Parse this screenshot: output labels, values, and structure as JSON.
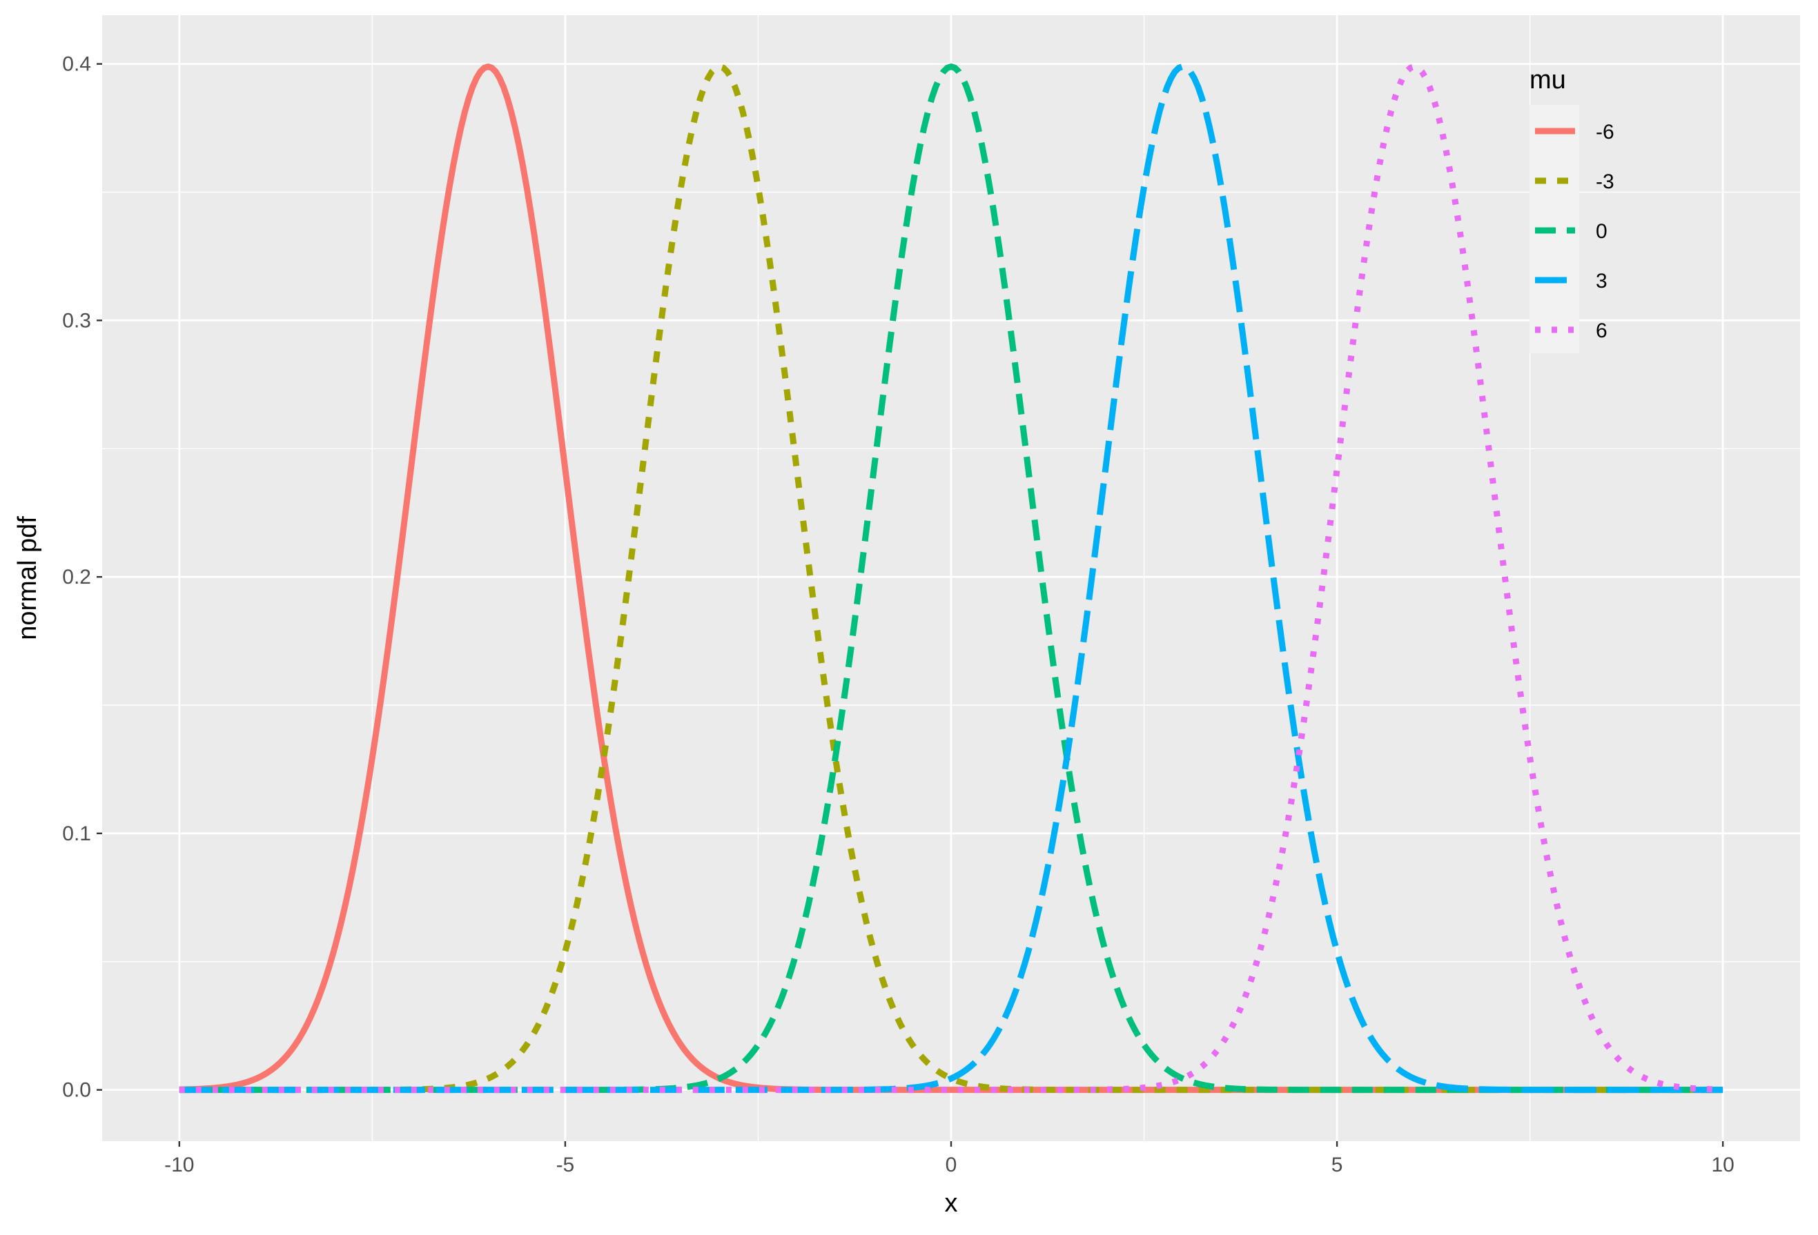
{
  "chart_data": {
    "type": "line",
    "xlabel": "x",
    "ylabel": "normal pdf",
    "xlim": [
      -11,
      11
    ],
    "ylim": [
      -0.02,
      0.419
    ],
    "x_ticks": [
      -10,
      -5,
      0,
      5,
      10
    ],
    "x_tick_labels": [
      "-10",
      "-5",
      "0",
      "5",
      "10"
    ],
    "x_minor_ticks": [
      -7.5,
      -2.5,
      2.5,
      7.5
    ],
    "y_ticks": [
      0.0,
      0.1,
      0.2,
      0.3,
      0.4
    ],
    "y_tick_labels": [
      "0.0",
      "0.1",
      "0.2",
      "0.3",
      "0.4"
    ],
    "y_minor_ticks": [
      0.05,
      0.15,
      0.25,
      0.35
    ],
    "grid": true,
    "background": "#ebebeb",
    "legend": {
      "title": "mu",
      "position": "top-right-inside"
    },
    "x_range": [
      -10,
      10
    ],
    "sd": 1,
    "series": [
      {
        "name": "-6",
        "mu": -6,
        "color": "#F8766D",
        "linetype": "solid"
      },
      {
        "name": "-3",
        "mu": -3,
        "color": "#A3A500",
        "linetype": "dashed-short"
      },
      {
        "name": "0",
        "mu": 0,
        "color": "#00BF7D",
        "linetype": "dashed"
      },
      {
        "name": "3",
        "mu": 3,
        "color": "#00B0F6",
        "linetype": "dashed-long"
      },
      {
        "name": "6",
        "mu": 6,
        "color": "#E76BF3",
        "linetype": "dotted"
      }
    ]
  }
}
